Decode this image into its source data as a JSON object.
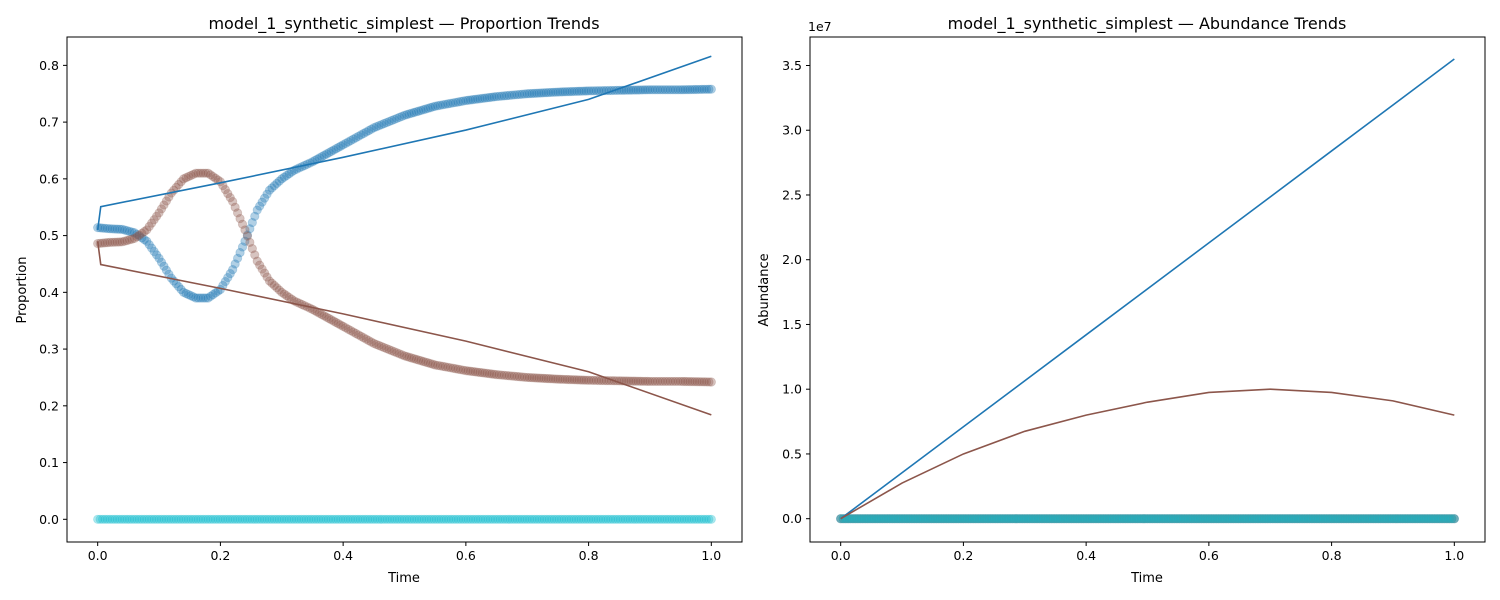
{
  "chart_data": [
    {
      "type": "line",
      "title": "model_1_synthetic_simplest — Proportion Trends",
      "xlabel": "Time",
      "ylabel": "Proportion",
      "xlim": [
        -0.05,
        1.05
      ],
      "ylim": [
        -0.04,
        0.85
      ],
      "xticks": [
        0.0,
        0.2,
        0.4,
        0.6,
        0.8,
        1.0
      ],
      "xtick_labels": [
        "0.0",
        "0.2",
        "0.4",
        "0.6",
        "0.8",
        "1.0"
      ],
      "yticks": [
        0.0,
        0.1,
        0.2,
        0.3,
        0.4,
        0.5,
        0.6,
        0.7,
        0.8
      ],
      "ytick_labels": [
        "0.0",
        "0.1",
        "0.2",
        "0.3",
        "0.4",
        "0.5",
        "0.6",
        "0.7",
        "0.8"
      ],
      "grid": false,
      "scatter_series": [
        {
          "color": "#1f77b4",
          "marker": "circle",
          "x": [
            0.0,
            0.02,
            0.04,
            0.06,
            0.08,
            0.1,
            0.12,
            0.14,
            0.16,
            0.18,
            0.2,
            0.22,
            0.24,
            0.26,
            0.28,
            0.3,
            0.32,
            0.35,
            0.4,
            0.45,
            0.5,
            0.55,
            0.6,
            0.65,
            0.7,
            0.75,
            0.8,
            0.85,
            0.9,
            0.95,
            1.0
          ],
          "y": [
            0.514,
            0.512,
            0.511,
            0.505,
            0.49,
            0.46,
            0.425,
            0.4,
            0.39,
            0.39,
            0.405,
            0.44,
            0.49,
            0.545,
            0.58,
            0.6,
            0.615,
            0.63,
            0.66,
            0.69,
            0.712,
            0.728,
            0.738,
            0.745,
            0.75,
            0.753,
            0.755,
            0.756,
            0.757,
            0.757,
            0.758
          ]
        },
        {
          "color": "#8c564b",
          "marker": "circle",
          "x": [
            0.0,
            0.02,
            0.04,
            0.06,
            0.08,
            0.1,
            0.12,
            0.14,
            0.16,
            0.18,
            0.2,
            0.22,
            0.24,
            0.26,
            0.28,
            0.3,
            0.32,
            0.35,
            0.4,
            0.45,
            0.5,
            0.55,
            0.6,
            0.65,
            0.7,
            0.75,
            0.8,
            0.85,
            0.9,
            0.95,
            1.0
          ],
          "y": [
            0.486,
            0.488,
            0.489,
            0.495,
            0.51,
            0.54,
            0.575,
            0.6,
            0.61,
            0.61,
            0.595,
            0.56,
            0.51,
            0.455,
            0.42,
            0.4,
            0.385,
            0.37,
            0.34,
            0.31,
            0.288,
            0.272,
            0.262,
            0.255,
            0.25,
            0.247,
            0.245,
            0.244,
            0.243,
            0.243,
            0.242
          ]
        },
        {
          "color": "#17becf",
          "marker": "circle",
          "x": [
            0.0,
            0.1,
            0.2,
            0.3,
            0.4,
            0.5,
            0.6,
            0.7,
            0.8,
            0.9,
            1.0
          ],
          "y": [
            0.0,
            0.0,
            0.0,
            0.0,
            0.0,
            0.0,
            0.0,
            0.0,
            0.0,
            0.0,
            0.0
          ]
        }
      ],
      "line_series": [
        {
          "color": "#1f77b4",
          "x": [
            0.0,
            0.005,
            0.2,
            0.4,
            0.6,
            0.8,
            1.0
          ],
          "y": [
            0.51,
            0.551,
            0.593,
            0.638,
            0.686,
            0.74,
            0.816
          ]
        },
        {
          "color": "#8c564b",
          "x": [
            0.0,
            0.005,
            0.2,
            0.4,
            0.6,
            0.8,
            1.0
          ],
          "y": [
            0.49,
            0.449,
            0.407,
            0.362,
            0.314,
            0.26,
            0.184
          ]
        }
      ]
    },
    {
      "type": "line",
      "title": "model_1_synthetic_simplest — Abundance Trends",
      "xlabel": "Time",
      "ylabel": "Abundance",
      "offset_label": "1e7",
      "xlim": [
        -0.05,
        1.05
      ],
      "ylim": [
        -0.18,
        3.72
      ],
      "xticks": [
        0.0,
        0.2,
        0.4,
        0.6,
        0.8,
        1.0
      ],
      "xtick_labels": [
        "0.0",
        "0.2",
        "0.4",
        "0.6",
        "0.8",
        "1.0"
      ],
      "yticks": [
        0.0,
        0.5,
        1.0,
        1.5,
        2.0,
        2.5,
        3.0,
        3.5
      ],
      "ytick_labels": [
        "0.0",
        "0.5",
        "1.0",
        "1.5",
        "2.0",
        "2.5",
        "3.0",
        "3.5"
      ],
      "grid": false,
      "scatter_series": [
        {
          "color": "#1f77b4",
          "marker": "circle",
          "x": [
            0.0,
            0.1,
            0.2,
            0.3,
            0.4,
            0.5,
            0.6,
            0.7,
            0.8,
            0.9,
            1.0
          ],
          "y": [
            0.0,
            0.0,
            0.0,
            0.0,
            0.0,
            0.0,
            0.0,
            0.0,
            0.0,
            0.0,
            0.0
          ]
        },
        {
          "color": "#8c564b",
          "marker": "circle",
          "x": [
            0.0,
            0.1,
            0.2,
            0.3,
            0.4,
            0.5,
            0.6,
            0.7,
            0.8,
            0.9,
            1.0
          ],
          "y": [
            0.0,
            0.0,
            0.0,
            0.0,
            0.0,
            0.0,
            0.0,
            0.0,
            0.0,
            0.0,
            0.0
          ]
        },
        {
          "color": "#17becf",
          "marker": "circle",
          "x": [
            0.0,
            0.1,
            0.2,
            0.3,
            0.4,
            0.5,
            0.6,
            0.7,
            0.8,
            0.9,
            1.0
          ],
          "y": [
            0.0,
            0.0,
            0.0,
            0.0,
            0.0,
            0.0,
            0.0,
            0.0,
            0.0,
            0.0,
            0.0
          ]
        }
      ],
      "line_series": [
        {
          "color": "#1f77b4",
          "x": [
            0.0,
            0.2,
            0.4,
            0.6,
            0.8,
            1.0
          ],
          "y": [
            0.0,
            0.71,
            1.42,
            2.13,
            2.84,
            3.55
          ]
        },
        {
          "color": "#8c564b",
          "x": [
            0.0,
            0.1,
            0.2,
            0.3,
            0.4,
            0.5,
            0.6,
            0.7,
            0.8,
            0.9,
            1.0
          ],
          "y": [
            0.0,
            0.275,
            0.5,
            0.675,
            0.8,
            0.9,
            0.975,
            1.0,
            0.975,
            0.91,
            0.8
          ]
        }
      ]
    }
  ]
}
